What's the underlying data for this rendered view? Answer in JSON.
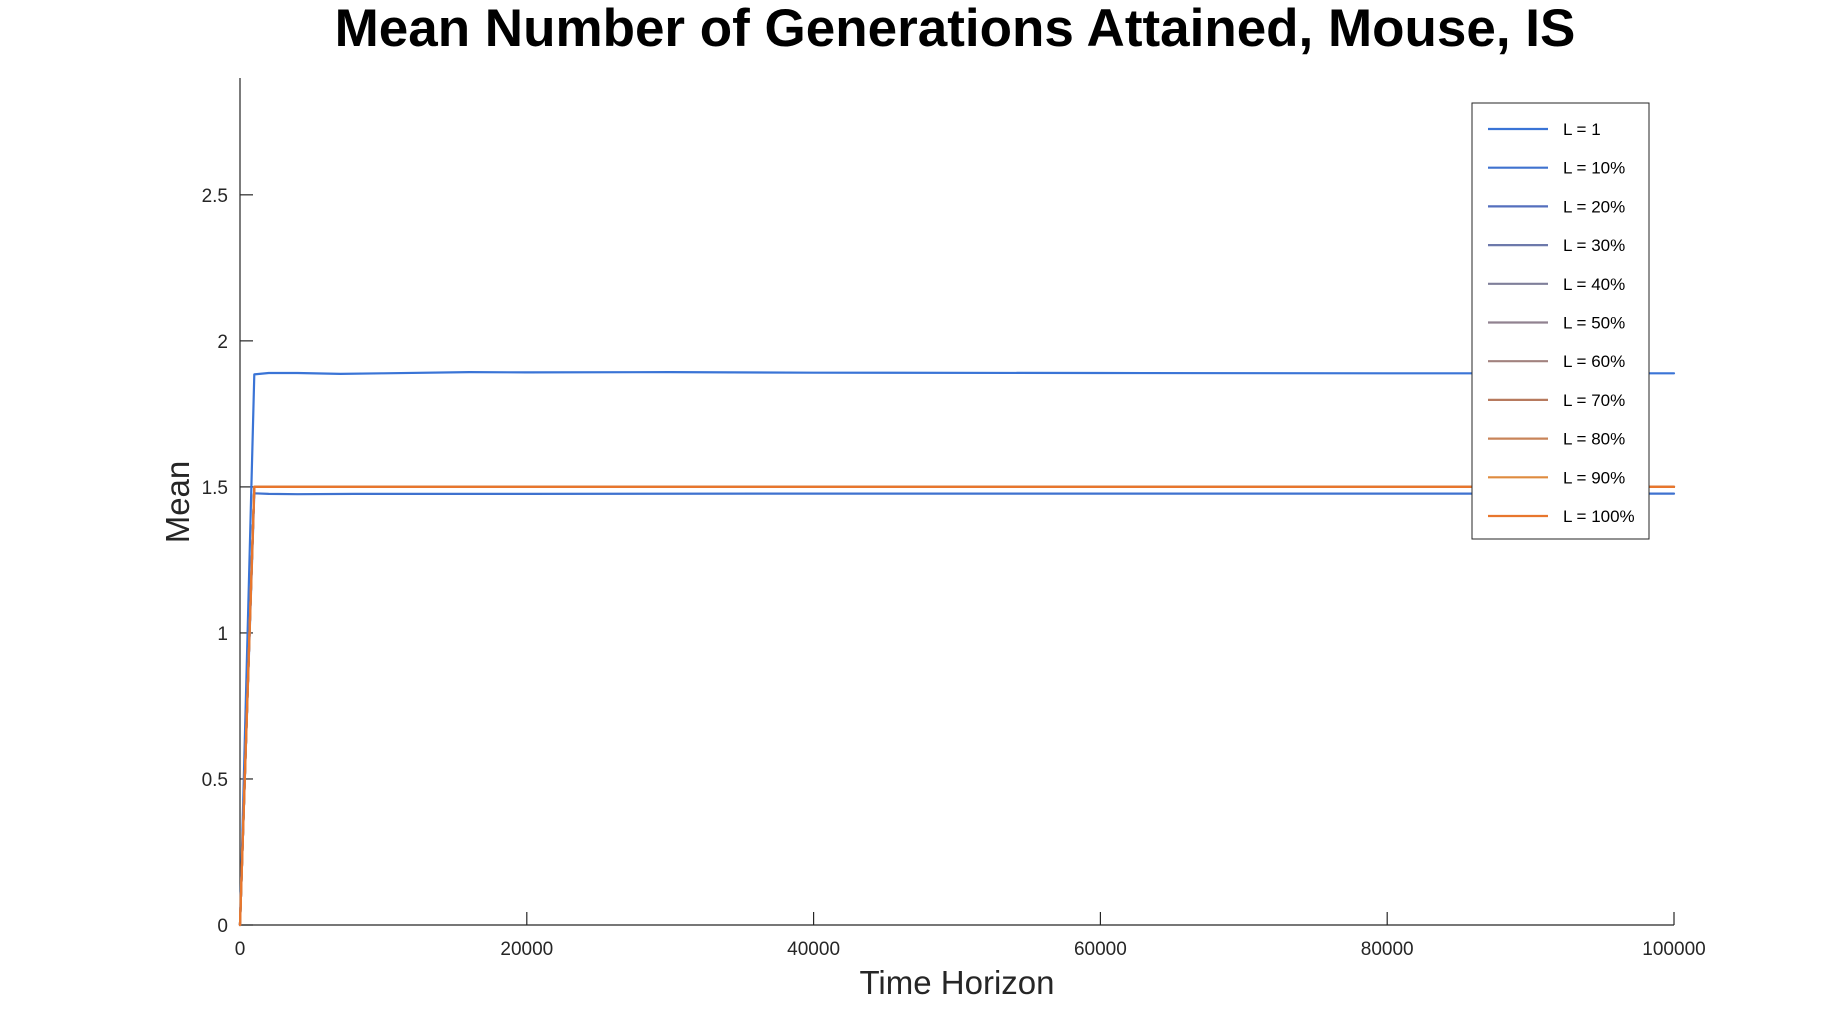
{
  "chart_data": {
    "type": "line",
    "title": "Mean Number of Generations Attained, Mouse, IS",
    "xlabel": "Time Horizon",
    "ylabel": "Mean",
    "xlim": [
      0,
      100000
    ],
    "ylim": [
      0,
      2.9
    ],
    "xticks": [
      0,
      20000,
      40000,
      60000,
      80000,
      100000
    ],
    "xtick_labels": [
      "0",
      "20000",
      "40000",
      "60000",
      "80000",
      "100000"
    ],
    "yticks": [
      0,
      0.5,
      1,
      1.5,
      2,
      2.5
    ],
    "ytick_labels": [
      "0",
      "0.5",
      "1",
      "1.5",
      "2",
      "2.5"
    ],
    "grid": false,
    "legend_position": "top-right",
    "series": [
      {
        "name": "L = 1",
        "color": "#3a74d6",
        "x": [
          0,
          1000,
          2000,
          4000,
          7000,
          10000,
          16000,
          20000,
          30000,
          40000,
          60000,
          80000,
          100000
        ],
        "y": [
          0,
          1.885,
          1.89,
          1.89,
          1.887,
          1.889,
          1.893,
          1.892,
          1.893,
          1.891,
          1.89,
          1.889,
          1.889
        ]
      },
      {
        "name": "L = 10%",
        "color": "#3f72cf",
        "x": [
          0,
          1000,
          2000,
          4000,
          8000,
          20000,
          40000,
          60000,
          80000,
          100000
        ],
        "y": [
          0,
          1.478,
          1.476,
          1.475,
          1.476,
          1.476,
          1.477,
          1.477,
          1.477,
          1.477
        ]
      },
      {
        "name": "L = 20%",
        "color": "#546fbd",
        "x": [
          0,
          1000,
          2000,
          100000
        ],
        "y": [
          0,
          1.5,
          1.5,
          1.5
        ]
      },
      {
        "name": "L = 30%",
        "color": "#6d79ab",
        "x": [
          0,
          1000,
          2000,
          100000
        ],
        "y": [
          0,
          1.5,
          1.5,
          1.5
        ]
      },
      {
        "name": "L = 40%",
        "color": "#7f7f9a",
        "x": [
          0,
          1000,
          2000,
          100000
        ],
        "y": [
          0,
          1.5,
          1.5,
          1.5
        ]
      },
      {
        "name": "L = 50%",
        "color": "#918290",
        "x": [
          0,
          1000,
          2000,
          100000
        ],
        "y": [
          0,
          1.5,
          1.5,
          1.5
        ]
      },
      {
        "name": "L = 60%",
        "color": "#a2827f",
        "x": [
          0,
          1000,
          2000,
          100000
        ],
        "y": [
          0,
          1.5,
          1.5,
          1.5
        ]
      },
      {
        "name": "L = 70%",
        "color": "#b77a5e",
        "x": [
          0,
          1000,
          2000,
          100000
        ],
        "y": [
          0,
          1.5,
          1.5,
          1.5
        ]
      },
      {
        "name": "L = 80%",
        "color": "#c88459",
        "x": [
          0,
          1000,
          2000,
          100000
        ],
        "y": [
          0,
          1.5,
          1.5,
          1.5
        ]
      },
      {
        "name": "L = 90%",
        "color": "#df8b3f",
        "x": [
          0,
          1000,
          2000,
          100000
        ],
        "y": [
          0,
          1.5,
          1.5,
          1.5
        ]
      },
      {
        "name": "L = 100%",
        "color": "#e8762d",
        "x": [
          0,
          1000,
          2000,
          100000
        ],
        "y": [
          0,
          1.5,
          1.5,
          1.5
        ]
      }
    ]
  }
}
